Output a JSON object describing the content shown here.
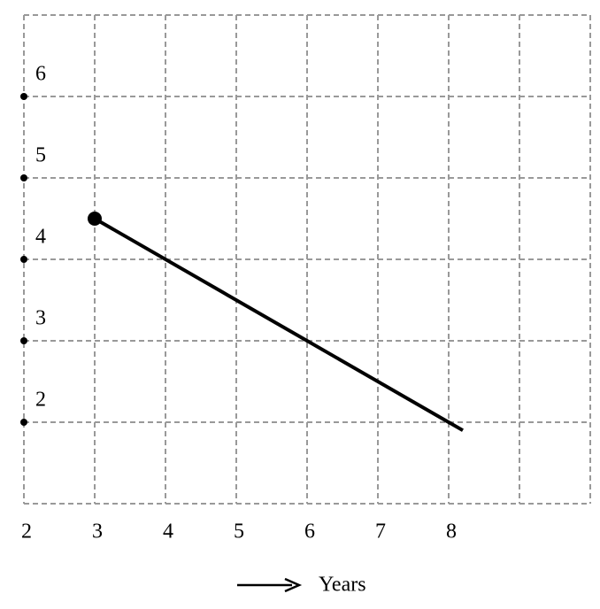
{
  "chart_data": {
    "type": "line",
    "x_label": "Years",
    "x": [
      3,
      8.2
    ],
    "values": [
      4.5,
      1.9
    ],
    "color": "#000000",
    "xlim": [
      2,
      10
    ],
    "ylim": [
      1,
      7
    ],
    "xticks": [
      2,
      3,
      4,
      5,
      6,
      7,
      8
    ],
    "yticks": [
      2,
      3,
      4,
      5,
      6
    ],
    "grid": true,
    "grid_step": 1
  }
}
